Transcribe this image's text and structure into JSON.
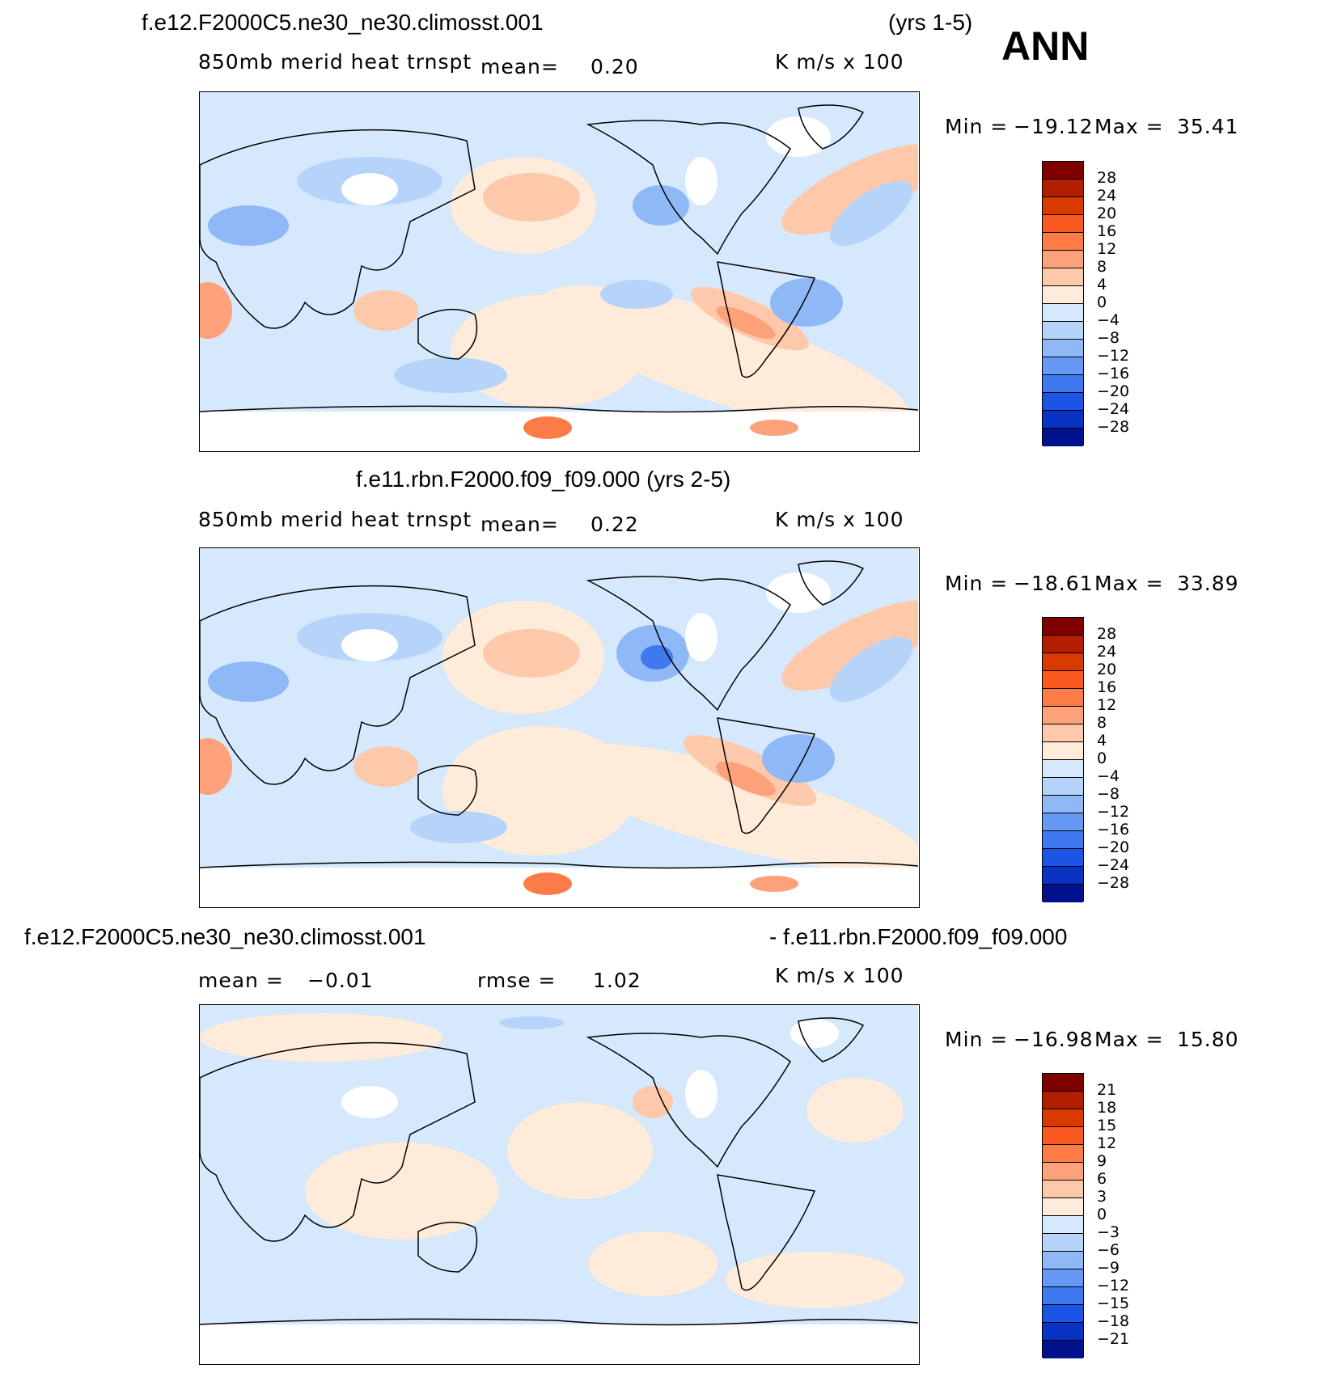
{
  "season": "ANN",
  "panels": [
    {
      "title": "f.e12.F2000C5.ne30_ne30.climosst.001",
      "years": "(yrs 1-5)",
      "variable": "850mb merid heat trnspt",
      "mean_label": "mean=",
      "mean_value": "0.20",
      "units": "K m/s x 100",
      "min_label": "Min =",
      "min_value": "−19.12",
      "max_label": "Max =",
      "max_value": "35.41",
      "colorbar_labels": [
        "28",
        "24",
        "20",
        "16",
        "12",
        "8",
        "4",
        "0",
        "−4",
        "−8",
        "−12",
        "−16",
        "−20",
        "−24",
        "−28"
      ]
    },
    {
      "title": "f.e11.rbn.F2000.f09_f09.000 (yrs 2-5)",
      "variable": "850mb merid heat trnspt",
      "mean_label": "mean=",
      "mean_value": "0.22",
      "units": "K m/s x 100",
      "min_label": "Min =",
      "min_value": "−18.61",
      "max_label": "Max =",
      "max_value": "33.89",
      "colorbar_labels": [
        "28",
        "24",
        "20",
        "16",
        "12",
        "8",
        "4",
        "0",
        "−4",
        "−8",
        "−12",
        "−16",
        "−20",
        "−24",
        "−28"
      ]
    },
    {
      "title_left": "f.e12.F2000C5.ne30_ne30.climosst.001",
      "title_right": "- f.e11.rbn.F2000.f09_f09.000",
      "mean_label": "mean =",
      "mean_value": "−0.01",
      "rmse_label": "rmse =",
      "rmse_value": "1.02",
      "units": "K m/s x 100",
      "min_label": "Min =",
      "min_value": "−16.98",
      "max_label": "Max =",
      "max_value": "15.80",
      "colorbar_labels": [
        "21",
        "18",
        "15",
        "12",
        "9",
        "6",
        "3",
        "0",
        "−3",
        "−6",
        "−9",
        "−12",
        "−15",
        "−18",
        "−21"
      ]
    }
  ],
  "colorbar_colors": [
    "#800000",
    "#b31d00",
    "#d93a00",
    "#fa5a1f",
    "#fc7b47",
    "#fda17a",
    "#fdc9aa",
    "#feebd9",
    "#d6e8fc",
    "#b6d4fa",
    "#8fb8f7",
    "#6699f4",
    "#3f78ef",
    "#1a55e6",
    "#0833c4",
    "#02128f"
  ],
  "map_colors": {
    "ocean_light_pos": "#feebd9",
    "ocean_light_neg": "#d6e8fc",
    "pos2": "#fdc9aa",
    "pos3": "#fda17a",
    "pos4": "#fc7b47",
    "neg2": "#b6d4fa",
    "neg3": "#8fb8f7",
    "neg4": "#6699f4",
    "missing": "#ffffff",
    "coast": "#000000"
  }
}
